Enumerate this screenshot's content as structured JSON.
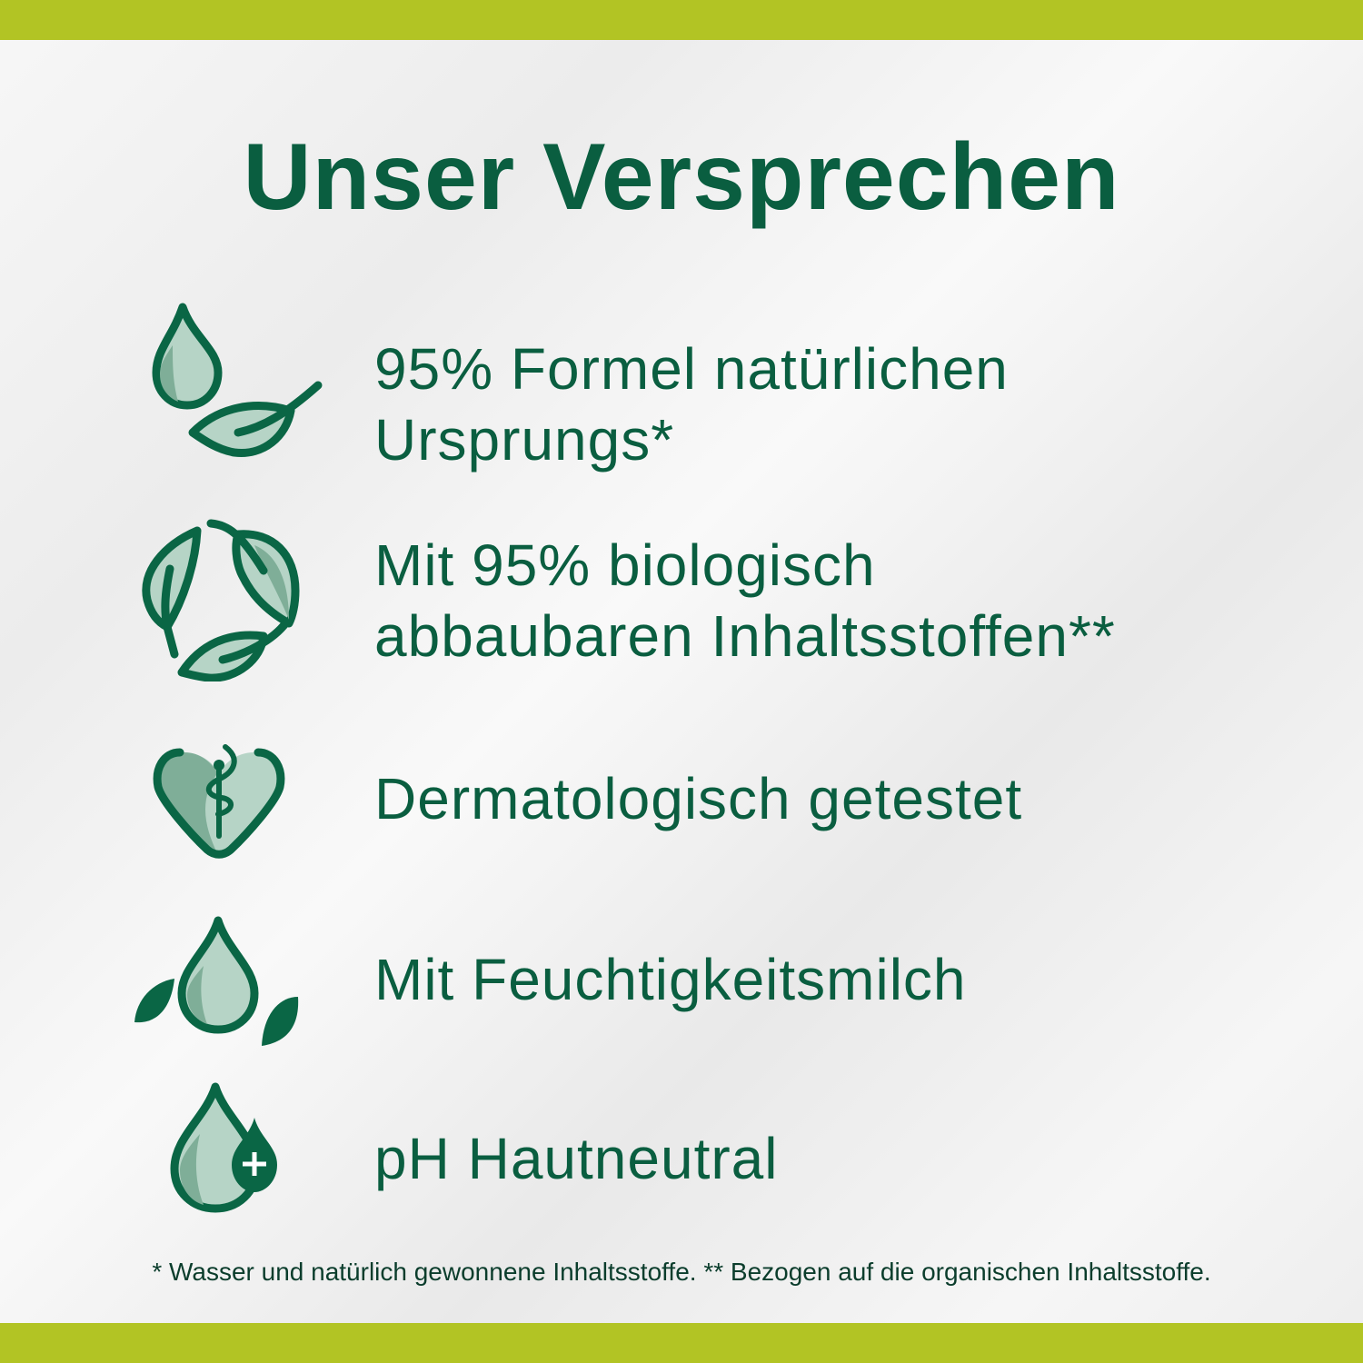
{
  "colors": {
    "brand_green": "#0a5e40",
    "light_green": "#b6d4c6",
    "mid_green": "#7fae98",
    "accent_lime": "#b2c424"
  },
  "title": "Unser Versprechen",
  "items": [
    {
      "icon": "drop-leaf-icon",
      "lines": [
        "95% Formel natürlichen",
        "Ursprungs*"
      ]
    },
    {
      "icon": "recycle-leaves-icon",
      "lines": [
        "Mit 95% biologisch",
        "abbaubaren Inhaltsstoffen**"
      ]
    },
    {
      "icon": "heart-caduceus-icon",
      "lines": [
        "Dermatologisch getestet"
      ]
    },
    {
      "icon": "drop-two-leaves-icon",
      "lines": [
        "Mit Feuchtigkeitsmilch"
      ]
    },
    {
      "icon": "drop-plus-icon",
      "lines": [
        "pH Hautneutral"
      ]
    }
  ],
  "footer": "* Wasser und natürlich gewonnene Inhaltsstoffe. ** Bezogen auf die organischen Inhaltsstoffe."
}
